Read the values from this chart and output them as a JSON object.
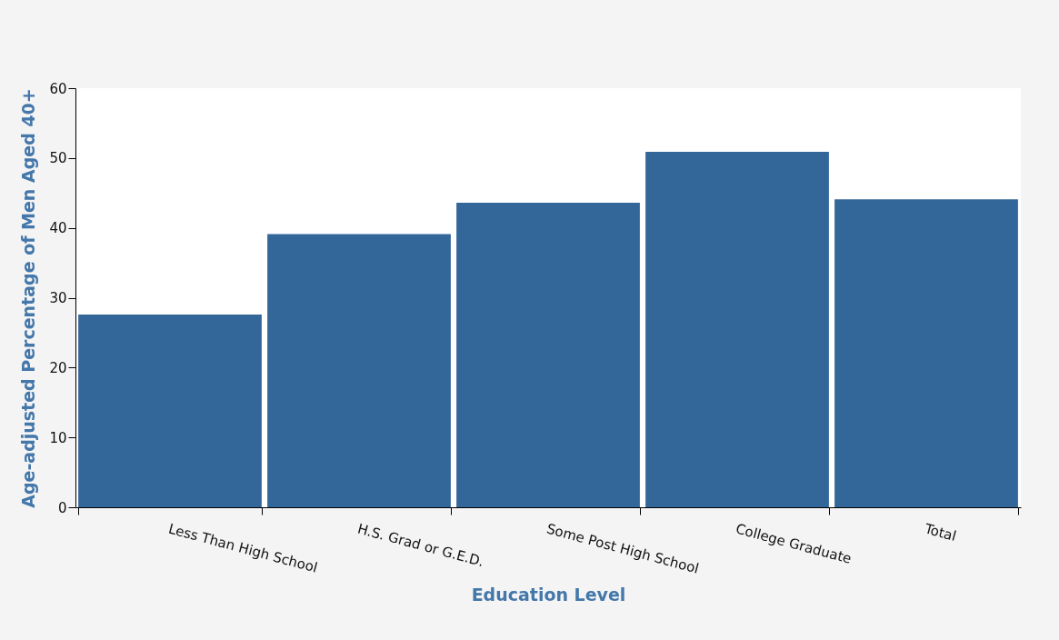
{
  "chart_data": {
    "type": "bar",
    "xlabel": "Education Level",
    "ylabel": "Age-adjusted Percentage of Men Aged 40+",
    "categories": [
      "Less Than High School",
      "H.S. Grad or G.E.D.",
      "Some Post High School",
      "College Graduate",
      "Total"
    ],
    "values": [
      27.6,
      39.1,
      43.6,
      50.9,
      44.1
    ],
    "color": "#336699",
    "ylim": [
      0,
      60
    ],
    "yticks": [
      0,
      10,
      20,
      30,
      40,
      50,
      60
    ],
    "grid": false
  }
}
